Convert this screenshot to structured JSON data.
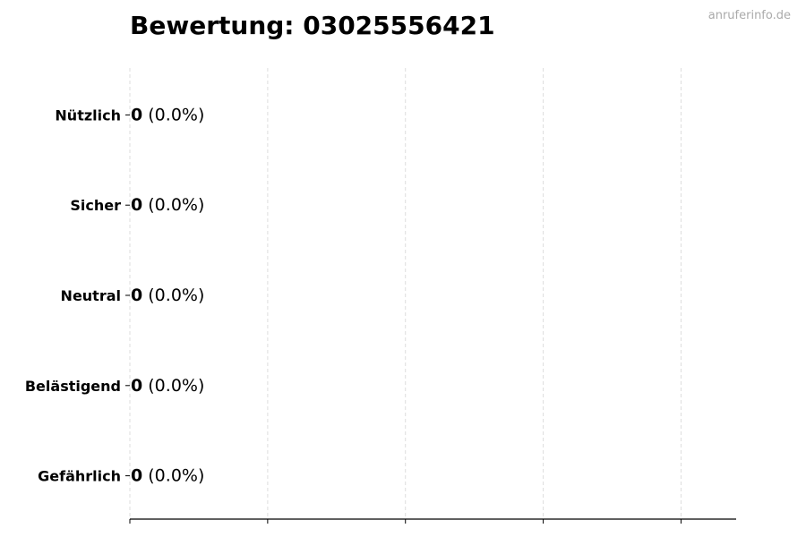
{
  "chart_data": {
    "type": "bar",
    "orientation": "horizontal",
    "title": "Bewertung: 03025556421",
    "watermark": "anruferinfo.de",
    "categories": [
      "Nützlich",
      "Sicher",
      "Neutral",
      "Belästigend",
      "Gefährlich"
    ],
    "values": [
      0,
      0,
      0,
      0,
      0
    ],
    "data_labels": [
      {
        "count": "0",
        "percent": "(0.0%)"
      },
      {
        "count": "0",
        "percent": "(0.0%)"
      },
      {
        "count": "0",
        "percent": "(0.0%)"
      },
      {
        "count": "0",
        "percent": "(0.0%)"
      },
      {
        "count": "0",
        "percent": "(0.0%)"
      }
    ],
    "xlabel": "",
    "ylabel": "",
    "xlim": [
      0,
      4.4
    ],
    "xticks": [
      0,
      1,
      2,
      3,
      4
    ],
    "xtick_labels_shown": false,
    "grid": "vertical dashed",
    "colors": {
      "bar_edge": "#000000",
      "grid": "#dddddd",
      "watermark": "#aaaaaa"
    }
  }
}
